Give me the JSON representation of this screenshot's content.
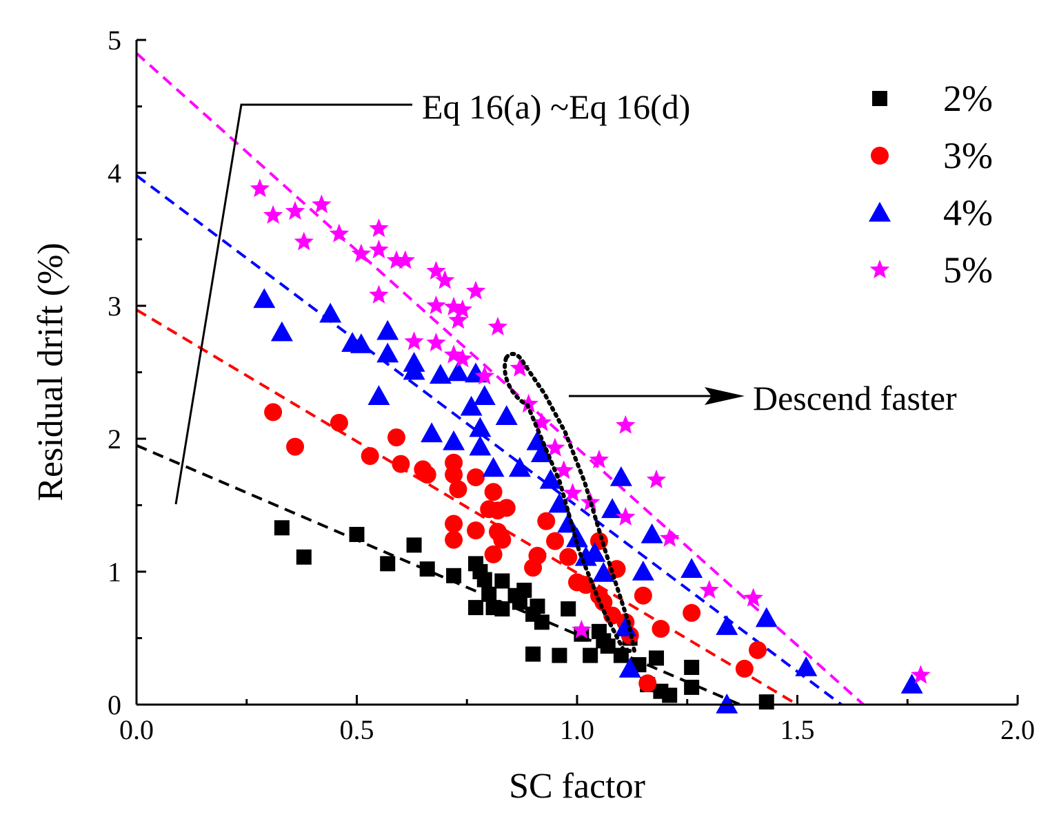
{
  "chart_data": {
    "type": "scatter",
    "title": "",
    "xlabel": "SC factor",
    "ylabel": "Residual drift (%)",
    "xlim": [
      0,
      2
    ],
    "ylim": [
      0,
      5
    ],
    "xticks": [
      "0.0",
      "0.5",
      "1.0",
      "1.5",
      "2.0"
    ],
    "yticks": [
      "0",
      "1",
      "2",
      "3",
      "4",
      "5"
    ],
    "legend_position": "top-right",
    "annotations": {
      "equation": "Eq 16(a) ~Eq 16(d)",
      "descend": "Descend faster"
    },
    "series": [
      {
        "name": "2%",
        "marker": "square",
        "color": "#000000",
        "fit": {
          "intercept": 1.95,
          "x_end": 1.37
        },
        "points": [
          [
            0.33,
            1.33
          ],
          [
            0.38,
            1.11
          ],
          [
            0.5,
            1.28
          ],
          [
            0.57,
            1.06
          ],
          [
            0.63,
            1.2
          ],
          [
            0.66,
            1.02
          ],
          [
            0.72,
            0.97
          ],
          [
            0.77,
            1.06
          ],
          [
            0.77,
            0.73
          ],
          [
            0.78,
            1.0
          ],
          [
            0.79,
            0.94
          ],
          [
            0.8,
            0.83
          ],
          [
            0.81,
            0.73
          ],
          [
            0.83,
            0.93
          ],
          [
            0.83,
            0.72
          ],
          [
            0.86,
            0.82
          ],
          [
            0.87,
            0.77
          ],
          [
            0.88,
            0.86
          ],
          [
            0.9,
            0.68
          ],
          [
            0.91,
            0.74
          ],
          [
            0.92,
            0.62
          ],
          [
            0.9,
            0.38
          ],
          [
            0.96,
            0.37
          ],
          [
            0.98,
            0.72
          ],
          [
            1.01,
            0.53
          ],
          [
            1.03,
            0.37
          ],
          [
            1.05,
            0.55
          ],
          [
            1.06,
            0.48
          ],
          [
            1.07,
            0.44
          ],
          [
            1.1,
            0.37
          ],
          [
            1.12,
            0.5
          ],
          [
            1.14,
            0.3
          ],
          [
            1.16,
            0.15
          ],
          [
            1.18,
            0.35
          ],
          [
            1.19,
            0.1
          ],
          [
            1.21,
            0.07
          ],
          [
            1.26,
            0.28
          ],
          [
            1.26,
            0.13
          ],
          [
            1.43,
            0.02
          ]
        ]
      },
      {
        "name": "3%",
        "marker": "circle",
        "color": "#ff0000",
        "fit": {
          "intercept": 2.97,
          "x_end": 1.5
        },
        "points": [
          [
            0.31,
            2.2
          ],
          [
            0.36,
            1.94
          ],
          [
            0.46,
            2.12
          ],
          [
            0.53,
            1.87
          ],
          [
            0.59,
            2.01
          ],
          [
            0.6,
            1.81
          ],
          [
            0.65,
            1.77
          ],
          [
            0.66,
            1.73
          ],
          [
            0.72,
            1.82
          ],
          [
            0.72,
            1.73
          ],
          [
            0.73,
            1.62
          ],
          [
            0.72,
            1.36
          ],
          [
            0.72,
            1.24
          ],
          [
            0.77,
            1.71
          ],
          [
            0.77,
            1.31
          ],
          [
            0.8,
            1.47
          ],
          [
            0.81,
            1.6
          ],
          [
            0.82,
            1.46
          ],
          [
            0.84,
            1.48
          ],
          [
            0.82,
            1.3
          ],
          [
            0.83,
            1.24
          ],
          [
            0.81,
            1.13
          ],
          [
            0.9,
            1.03
          ],
          [
            0.91,
            1.12
          ],
          [
            0.93,
            1.38
          ],
          [
            0.95,
            1.23
          ],
          [
            0.98,
            1.11
          ],
          [
            1.0,
            0.92
          ],
          [
            1.02,
            0.9
          ],
          [
            1.05,
            0.82
          ],
          [
            1.06,
            0.77
          ],
          [
            1.08,
            0.67
          ],
          [
            1.09,
            1.02
          ],
          [
            1.11,
            0.62
          ],
          [
            1.12,
            0.52
          ],
          [
            1.15,
            0.82
          ],
          [
            1.16,
            0.16
          ],
          [
            1.19,
            0.57
          ],
          [
            1.26,
            0.69
          ],
          [
            1.38,
            0.27
          ],
          [
            1.41,
            0.41
          ],
          [
            1.05,
            1.23
          ]
        ]
      },
      {
        "name": "4%",
        "marker": "triangle",
        "color": "#0000ff",
        "fit": {
          "intercept": 3.98,
          "x_end": 1.6
        },
        "points": [
          [
            0.29,
            3.05
          ],
          [
            0.33,
            2.8
          ],
          [
            0.44,
            2.94
          ],
          [
            0.49,
            2.72
          ],
          [
            0.51,
            2.71
          ],
          [
            0.55,
            2.32
          ],
          [
            0.57,
            2.64
          ],
          [
            0.57,
            2.81
          ],
          [
            0.63,
            2.57
          ],
          [
            0.63,
            2.51
          ],
          [
            0.67,
            2.04
          ],
          [
            0.69,
            2.48
          ],
          [
            0.72,
            1.98
          ],
          [
            0.73,
            2.5
          ],
          [
            0.76,
            2.24
          ],
          [
            0.77,
            2.49
          ],
          [
            0.78,
            1.94
          ],
          [
            0.78,
            2.08
          ],
          [
            0.79,
            2.32
          ],
          [
            0.81,
            1.78
          ],
          [
            0.84,
            2.17
          ],
          [
            0.87,
            1.78
          ],
          [
            0.91,
            1.98
          ],
          [
            0.92,
            1.89
          ],
          [
            0.94,
            1.69
          ],
          [
            0.96,
            1.51
          ],
          [
            0.98,
            1.36
          ],
          [
            1.0,
            1.25
          ],
          [
            1.02,
            1.11
          ],
          [
            1.04,
            1.14
          ],
          [
            1.06,
            0.99
          ],
          [
            1.08,
            1.47
          ],
          [
            1.1,
            1.71
          ],
          [
            1.11,
            0.58
          ],
          [
            1.12,
            0.27
          ],
          [
            1.15,
            1.0
          ],
          [
            1.17,
            1.28
          ],
          [
            1.26,
            1.02
          ],
          [
            1.34,
            0.59
          ],
          [
            1.34,
            0.0
          ],
          [
            1.43,
            0.65
          ],
          [
            1.52,
            0.28
          ],
          [
            1.76,
            0.15
          ]
        ]
      },
      {
        "name": "5%",
        "marker": "star",
        "color": "#ff00ff",
        "fit": {
          "intercept": 4.9,
          "x_end": 1.65
        },
        "points": [
          [
            0.28,
            3.88
          ],
          [
            0.31,
            3.68
          ],
          [
            0.36,
            3.71
          ],
          [
            0.38,
            3.48
          ],
          [
            0.42,
            3.76
          ],
          [
            0.46,
            3.54
          ],
          [
            0.51,
            3.39
          ],
          [
            0.55,
            3.58
          ],
          [
            0.55,
            3.42
          ],
          [
            0.55,
            3.08
          ],
          [
            0.59,
            3.34
          ],
          [
            0.61,
            3.34
          ],
          [
            0.63,
            2.73
          ],
          [
            0.68,
            3.26
          ],
          [
            0.68,
            3.0
          ],
          [
            0.68,
            2.72
          ],
          [
            0.7,
            3.19
          ],
          [
            0.72,
            2.99
          ],
          [
            0.73,
            2.89
          ],
          [
            0.74,
            2.97
          ],
          [
            0.77,
            3.11
          ],
          [
            0.72,
            2.63
          ],
          [
            0.74,
            2.6
          ],
          [
            0.82,
            2.84
          ],
          [
            0.79,
            2.47
          ],
          [
            0.87,
            2.53
          ],
          [
            0.89,
            2.26
          ],
          [
            0.92,
            2.12
          ],
          [
            0.95,
            1.93
          ],
          [
            0.97,
            1.76
          ],
          [
            0.99,
            1.59
          ],
          [
            1.03,
            1.52
          ],
          [
            1.05,
            1.84
          ],
          [
            1.11,
            1.41
          ],
          [
            1.11,
            2.1
          ],
          [
            1.18,
            1.69
          ],
          [
            1.21,
            1.25
          ],
          [
            1.3,
            0.86
          ],
          [
            1.4,
            0.8
          ],
          [
            1.01,
            0.56
          ],
          [
            1.78,
            0.22
          ]
        ]
      }
    ]
  }
}
